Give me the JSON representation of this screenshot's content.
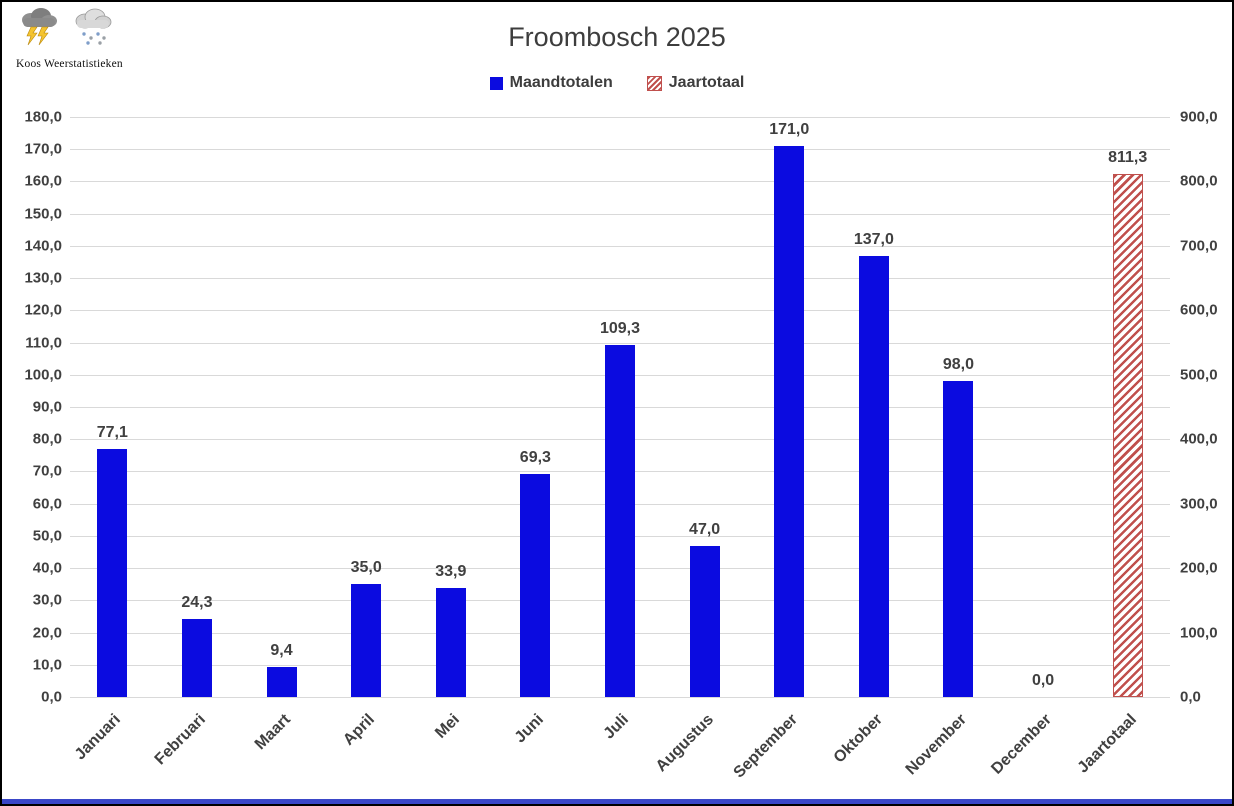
{
  "logo": {
    "text": "Koos Weerstatistieken",
    "icons": [
      "storm-cloud",
      "rain-cloud"
    ]
  },
  "colors": {
    "maand": "#0b0be0",
    "jaar": "#c0504d",
    "grid": "#d9d9d9",
    "text": "#404040",
    "frame_border": "#000000",
    "bottom_strip": "#3a46c8",
    "background": "#ffffff"
  },
  "chart_data": {
    "type": "bar",
    "title": "Froombosch 2025",
    "legend": [
      {
        "label": "Maandtotalen",
        "color": "#0b0be0",
        "style": "solid"
      },
      {
        "label": "Jaartotaal",
        "color": "#c0504d",
        "style": "hatch"
      }
    ],
    "axes": {
      "left": {
        "min": 0,
        "max": 180,
        "step": 10,
        "format": "comma-decimal"
      },
      "right": {
        "min": 0,
        "max": 900,
        "step": 100,
        "format": "comma-decimal"
      }
    },
    "grid": true,
    "legend_position": "top-center",
    "categories": [
      "Januari",
      "Februari",
      "Maart",
      "April",
      "Mei",
      "Juni",
      "Juli",
      "Augustus",
      "September",
      "Oktober",
      "November",
      "December",
      "Jaartotaal"
    ],
    "bars": [
      {
        "category": "Januari",
        "series": "Maandtotalen",
        "value": 77.1,
        "label": "77,1"
      },
      {
        "category": "Februari",
        "series": "Maandtotalen",
        "value": 24.3,
        "label": "24,3"
      },
      {
        "category": "Maart",
        "series": "Maandtotalen",
        "value": 9.4,
        "label": "9,4"
      },
      {
        "category": "April",
        "series": "Maandtotalen",
        "value": 35.0,
        "label": "35,0"
      },
      {
        "category": "Mei",
        "series": "Maandtotalen",
        "value": 33.9,
        "label": "33,9"
      },
      {
        "category": "Juni",
        "series": "Maandtotalen",
        "value": 69.3,
        "label": "69,3"
      },
      {
        "category": "Juli",
        "series": "Maandtotalen",
        "value": 109.3,
        "label": "109,3"
      },
      {
        "category": "Augustus",
        "series": "Maandtotalen",
        "value": 47.0,
        "label": "47,0"
      },
      {
        "category": "September",
        "series": "Maandtotalen",
        "value": 171.0,
        "label": "171,0"
      },
      {
        "category": "Oktober",
        "series": "Maandtotalen",
        "value": 137.0,
        "label": "137,0"
      },
      {
        "category": "November",
        "series": "Maandtotalen",
        "value": 98.0,
        "label": "98,0"
      },
      {
        "category": "December",
        "series": "Maandtotalen",
        "value": 0.0,
        "label": "0,0"
      },
      {
        "category": "Jaartotaal",
        "series": "Jaartotaal",
        "value": 811.3,
        "label": "811,3"
      }
    ]
  }
}
